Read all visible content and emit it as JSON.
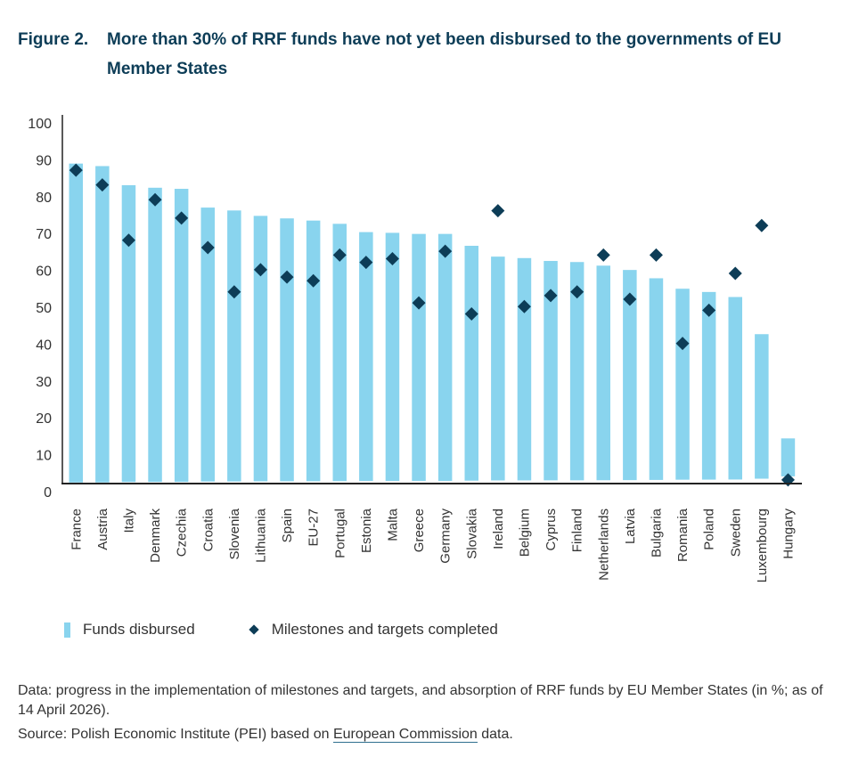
{
  "header": {
    "figure_label": "Figure 2.",
    "title": "More than 30% of RRF funds have not yet been disbursed to the governments of EU Member States"
  },
  "colors": {
    "bar": "#89d4ee",
    "diamond": "#0d3d57",
    "title": "#0d3d57",
    "axis": "#222222"
  },
  "chart_data": {
    "type": "bar",
    "title": "More than 30% of RRF funds have not yet been disbursed to the governments of EU Member States",
    "xlabel": "",
    "ylabel": "",
    "ylim": [
      0,
      100
    ],
    "yticks": [
      0,
      10,
      20,
      30,
      40,
      50,
      60,
      70,
      80,
      90,
      100
    ],
    "grid": false,
    "legend_position": "bottom-left",
    "categories": [
      "France",
      "Austria",
      "Italy",
      "Denmark",
      "Czechia",
      "Croatia",
      "Slovenia",
      "Lithuania",
      "Spain",
      "EU-27",
      "Portugal",
      "Estonia",
      "Malta",
      "Greece",
      "Germany",
      "Slovakia",
      "Ireland",
      "Belgium",
      "Cyprus",
      "Finland",
      "Netherlands",
      "Latvia",
      "Bulgaria",
      "Romania",
      "Poland",
      "Sweden",
      "Luxembourg",
      "Hungary"
    ],
    "series": [
      {
        "name": "Funds disbursed",
        "type": "bar",
        "values": [
          86.5,
          85.8,
          80.5,
          79.8,
          79.5,
          74.3,
          73.5,
          72,
          71.3,
          70.7,
          69.8,
          67.5,
          67.3,
          67,
          67,
          63.7,
          60.7,
          60.3,
          59.5,
          59.2,
          58.2,
          57,
          54.7,
          51.8,
          50.9,
          49.5,
          39.2,
          10.3
        ]
      },
      {
        "name": "Milestones and targets completed",
        "type": "scatter",
        "marker": "diamond",
        "values": [
          85,
          81,
          66,
          77,
          72,
          64,
          52,
          58,
          56,
          55,
          62,
          60,
          61,
          49,
          63,
          46,
          74,
          48,
          51,
          52,
          62,
          50,
          62,
          38,
          47,
          57,
          70,
          1
        ]
      }
    ]
  },
  "legend": {
    "bar_label": "Funds disbursed",
    "diamond_label": "Milestones and targets completed"
  },
  "footer": {
    "note": "Data: progress in the implementation of milestones and targets, and absorption of RRF funds by EU Member States (in %; as of 14 April 2026).",
    "source_prefix": "Source: Polish Economic Institute (PEI) based on ",
    "source_link": "European Commission",
    "source_suffix": " data."
  }
}
